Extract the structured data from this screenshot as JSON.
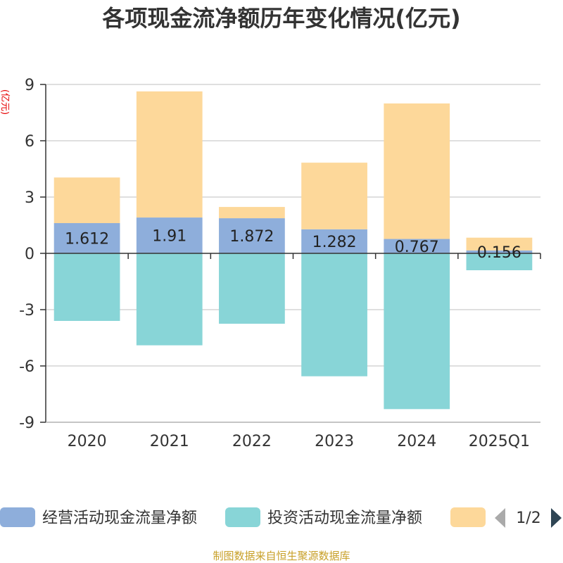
{
  "chart_data": {
    "type": "bar",
    "title": "各项现金流净额历年变化情况(亿元)",
    "ylabel": "(亿元)",
    "xlabel": "",
    "categories": [
      "2020",
      "2021",
      "2022",
      "2023",
      "2024",
      "2025Q1"
    ],
    "ylim": [
      -9,
      9
    ],
    "yticks": [
      9,
      6,
      3,
      0,
      -3,
      -6,
      -9
    ],
    "grid": true,
    "stacked": true,
    "series": [
      {
        "name": "经营活动现金流量净额",
        "color": "#8eaedb",
        "values": [
          1.612,
          1.91,
          1.872,
          1.282,
          0.767,
          0.156
        ],
        "labels": [
          "1.612",
          "1.91",
          "1.872",
          "1.282",
          "0.767",
          "0.156"
        ]
      },
      {
        "name": "投资活动现金流量净额",
        "color": "#88d5d7",
        "values": [
          -3.6,
          -4.9,
          -3.75,
          -6.55,
          -8.3,
          -0.9
        ]
      },
      {
        "name": "",
        "color": "#fdd89a",
        "values": [
          2.43,
          6.72,
          0.6,
          3.55,
          7.22,
          0.68
        ]
      }
    ],
    "legend_position": "bottom",
    "legend_page": "1/2"
  },
  "source": "制图数据来自恒生聚源数据库"
}
